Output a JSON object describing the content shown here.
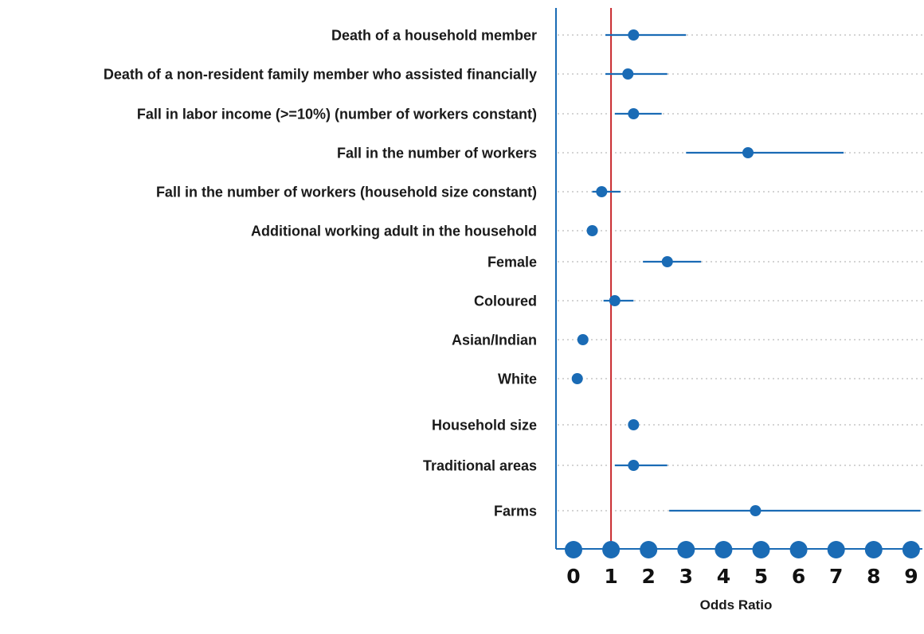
{
  "chart_data": {
    "type": "scatter",
    "subtype": "forest-plot",
    "title": "",
    "xlabel": "Odds Ratio",
    "ylabel": "",
    "xlim": [
      -0.25,
      9.3
    ],
    "xticks": [
      0,
      1,
      2,
      3,
      4,
      5,
      6,
      7,
      8,
      9
    ],
    "reference_line": 1,
    "grid": "horizontal dotted",
    "colors": {
      "point": "#1a6bb5",
      "reference": "#c8282d",
      "axis": "#1a6bb5",
      "grid": "#bbbbbb"
    },
    "rows": [
      {
        "label": "Death of a household member",
        "or": 1.6,
        "lo": 0.85,
        "hi": 3.0
      },
      {
        "label": "Death of a non-resident family member who assisted financially",
        "or": 1.45,
        "lo": 0.85,
        "hi": 2.5
      },
      {
        "label": "Fall in labor income (>=10%) (number of workers constant)",
        "or": 1.6,
        "lo": 1.1,
        "hi": 2.35
      },
      {
        "label": "Fall in the number of workers",
        "or": 4.65,
        "lo": 3.0,
        "hi": 7.2
      },
      {
        "label": "Fall in the number of workers (household size constant)",
        "or": 0.75,
        "lo": 0.5,
        "hi": 1.25
      },
      {
        "label": "Additional working adult in the household",
        "or": 0.5,
        "lo": 0.45,
        "hi": 0.55
      },
      {
        "label": "Female",
        "or": 2.5,
        "lo": 1.85,
        "hi": 3.4
      },
      {
        "label": "Coloured",
        "or": 1.1,
        "lo": 0.8,
        "hi": 1.6
      },
      {
        "label": "Asian/Indian",
        "or": 0.25,
        "lo": 0.2,
        "hi": 0.3
      },
      {
        "label": "White",
        "or": 0.1,
        "lo": 0.05,
        "hi": 0.15
      },
      {
        "label": "Household size",
        "or": 1.6,
        "lo": 1.55,
        "hi": 1.65
      },
      {
        "label": "Traditional areas",
        "or": 1.6,
        "lo": 1.1,
        "hi": 2.5
      },
      {
        "label": "Farms",
        "or": 4.85,
        "lo": 2.55,
        "hi": 9.25
      }
    ]
  }
}
